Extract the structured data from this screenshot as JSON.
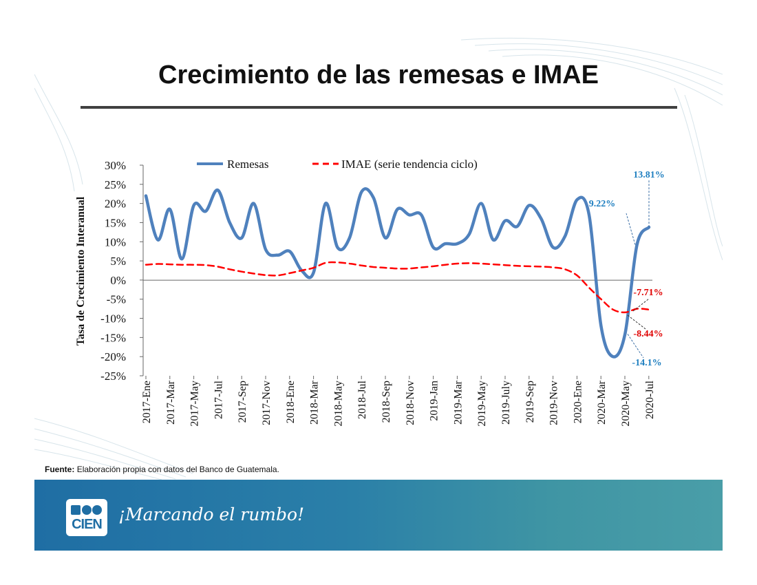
{
  "title": "Crecimiento de las remesas e IMAE",
  "source": {
    "label": "Fuente:",
    "text": "Elaboración propia con datos del Banco de Guatemala."
  },
  "footer": {
    "logo_text": "CIEN",
    "tagline": "¡Marcando el rumbo!"
  },
  "colors": {
    "remesas": "#4f81bd",
    "imae": "#ff0000",
    "annot_blue": "#1f7fc0",
    "annot_red": "#e00000",
    "footer": "#1f6ea4"
  },
  "chart_data": {
    "type": "line",
    "title": "",
    "xlabel": "",
    "ylabel": "Tasa de Crecimiento Interanual",
    "ylim": [
      -25,
      30
    ],
    "yticks": [
      30,
      25,
      20,
      15,
      10,
      5,
      0,
      -5,
      -10,
      -15,
      -20,
      -25
    ],
    "ytick_labels": [
      "30%",
      "25%",
      "20%",
      "15%",
      "10%",
      "5%",
      "0%",
      "-5%",
      "-10%",
      "-15%",
      "-20%",
      "-25%"
    ],
    "x_tick_labels": [
      "2017-Ene",
      "2017-Mar",
      "2017-May",
      "2017-Jul",
      "2017-Sep",
      "2017-Nov",
      "2018-Ene",
      "2018-Mar",
      "2018-May",
      "2018-Jul",
      "2018-Sep",
      "2018-Nov",
      "2019-Jan",
      "2019-Mar",
      "2019-May",
      "2019-July",
      "2019-Sep",
      "2019-Nov",
      "2020-Ene",
      "2020-Mar",
      "2020-May",
      "2020-Jul"
    ],
    "legend": {
      "position": "top",
      "entries": [
        "Remesas",
        "IMAE (serie tendencia ciclo)"
      ]
    },
    "series": [
      {
        "name": "Remesas",
        "style": "solid",
        "values": [
          22,
          10.5,
          18.5,
          5.5,
          19.5,
          18,
          23.5,
          15,
          11,
          20,
          8,
          6.5,
          7.5,
          2.5,
          2,
          20,
          8.5,
          11,
          23,
          21.5,
          11,
          18.5,
          17,
          17,
          8.5,
          9.5,
          9.5,
          12,
          20,
          10.5,
          15.5,
          14,
          19.5,
          16,
          8.5,
          11.5,
          21,
          17,
          -12,
          -20,
          -14.1,
          9.22,
          13.81
        ]
      },
      {
        "name": "IMAE (serie tendencia ciclo)",
        "style": "dashed",
        "values": [
          4,
          4.2,
          4.1,
          4,
          4,
          3.9,
          3.5,
          2.8,
          2.2,
          1.7,
          1.3,
          1.2,
          1.8,
          2.5,
          3.2,
          4.5,
          4.6,
          4.3,
          3.8,
          3.4,
          3.2,
          3.0,
          3.0,
          3.3,
          3.6,
          4.0,
          4.3,
          4.4,
          4.3,
          4.1,
          3.9,
          3.7,
          3.6,
          3.5,
          3.3,
          2.8,
          1.2,
          -2.0,
          -5.0,
          -7.71,
          -8.44,
          -7.5,
          -7.71
        ]
      }
    ],
    "annotations": [
      {
        "text": "13.81%",
        "series": "Remesas",
        "value": 13.81,
        "color": "blue"
      },
      {
        "text": "9.22%",
        "series": "Remesas",
        "value": 9.22,
        "color": "blue"
      },
      {
        "text": "-14.1%",
        "series": "Remesas",
        "value": -14.1,
        "color": "blue"
      },
      {
        "text": "-7.71%",
        "series": "IMAE (serie tendencia ciclo)",
        "value": -7.71,
        "color": "red"
      },
      {
        "text": "-8.44%",
        "series": "IMAE (serie tendencia ciclo)",
        "value": -8.44,
        "color": "red"
      }
    ]
  }
}
